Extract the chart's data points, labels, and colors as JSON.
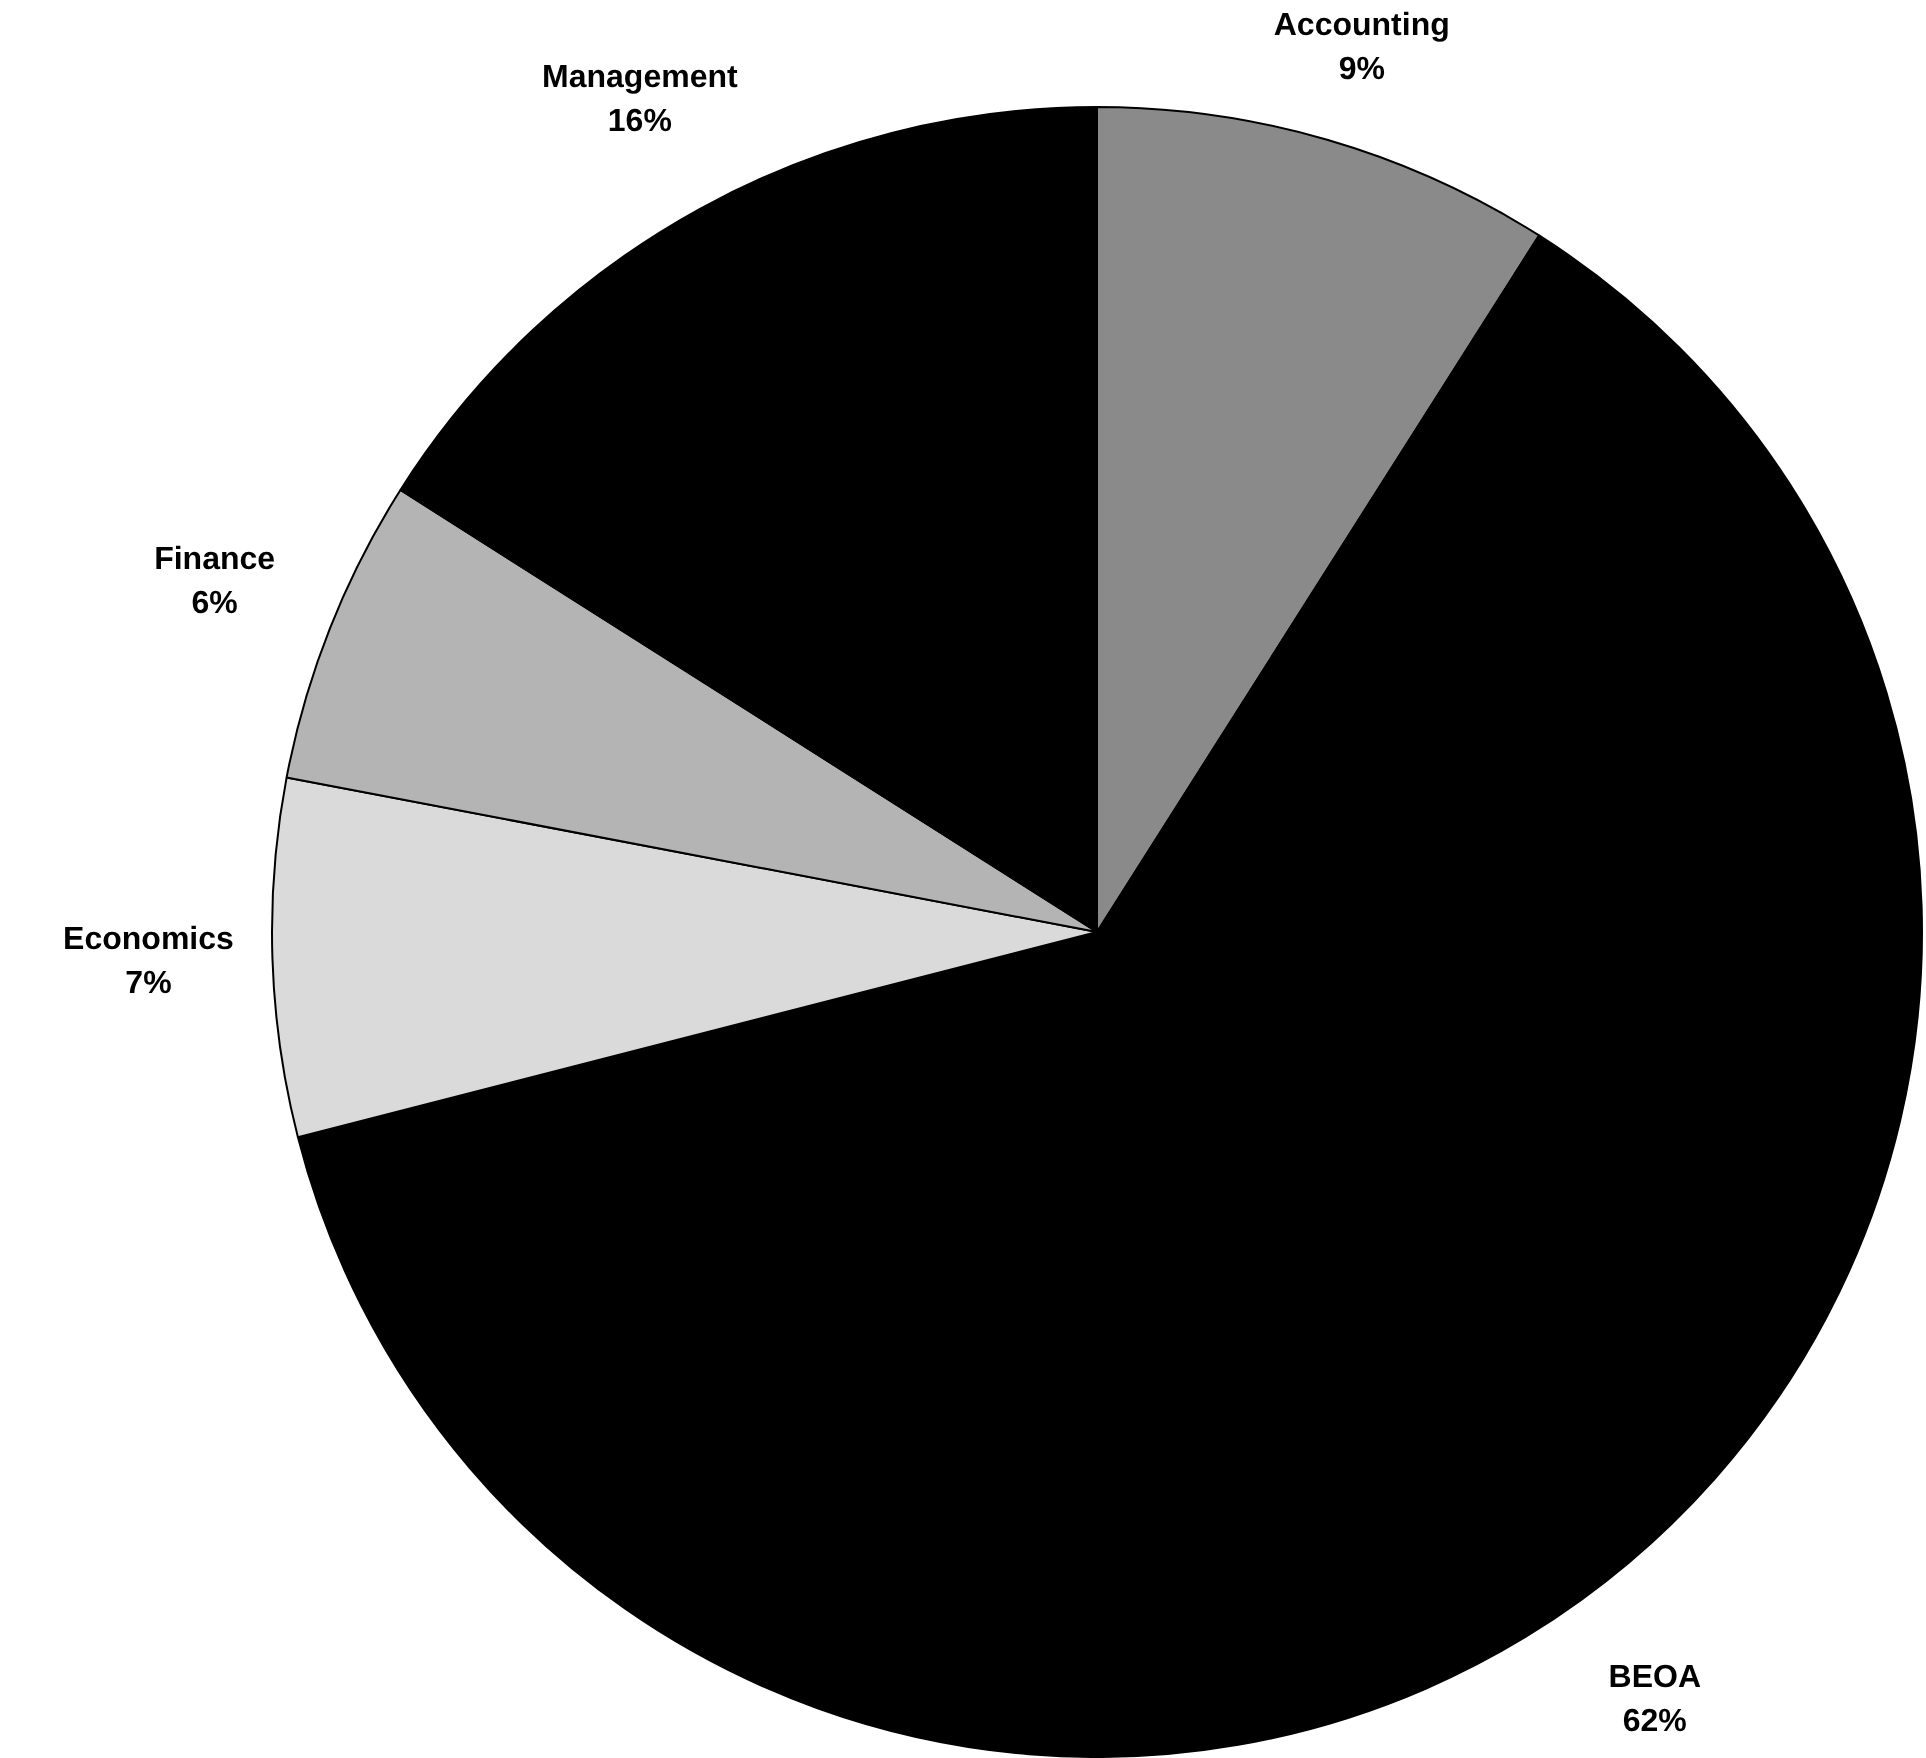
{
  "chart_data": {
    "type": "pie",
    "categories": [
      "Accounting",
      "BEOA",
      "Economics",
      "Finance",
      "Management"
    ],
    "values": [
      9,
      62,
      7,
      6,
      16
    ],
    "value_labels": [
      "9%",
      "62%",
      "7%",
      "6%",
      "16%"
    ],
    "colors": [
      "#8a8a8a",
      "#000000",
      "#dadada",
      "#b4b4b4",
      "#000000"
    ],
    "legend": false
  }
}
